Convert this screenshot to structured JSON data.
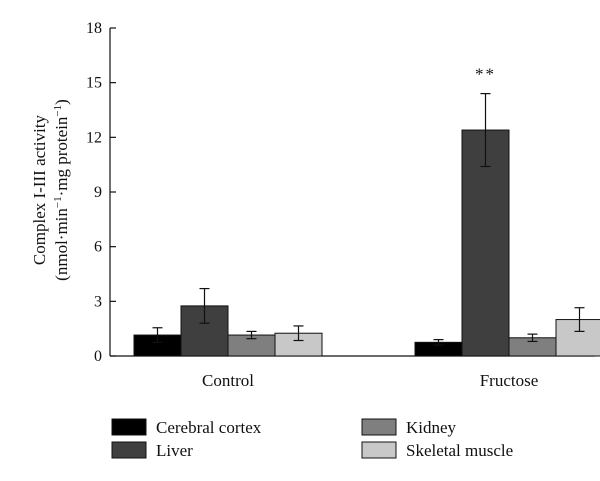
{
  "chart_data": {
    "type": "bar",
    "categories": [
      "Control",
      "Fructose"
    ],
    "series": [
      {
        "name": "Cerebral cortex",
        "values": [
          1.15,
          0.75
        ],
        "errors": [
          0.4,
          0.15
        ],
        "color": "#000000"
      },
      {
        "name": "Liver",
        "values": [
          2.75,
          12.4
        ],
        "errors": [
          0.95,
          2.0
        ],
        "color": "#3f3f3f"
      },
      {
        "name": "Kidney",
        "values": [
          1.15,
          1.0
        ],
        "errors": [
          0.2,
          0.2
        ],
        "color": "#7f7f7f"
      },
      {
        "name": "Skeletal muscle",
        "values": [
          1.25,
          2.0
        ],
        "errors": [
          0.4,
          0.65
        ],
        "color": "#c8c8c8"
      }
    ],
    "ylabel_line1": "Complex I-III activity",
    "ylabel_line2_parts": [
      "(nmol·min",
      "−1",
      "·mg protein",
      "−1",
      ")"
    ],
    "ylim": [
      0,
      18
    ],
    "yticks": [
      "0",
      "3",
      "6",
      "9",
      "12",
      "15",
      "18"
    ],
    "annotations": [
      {
        "category": "Fructose",
        "series": "Liver",
        "text": "**"
      }
    ],
    "grid": false,
    "legend_position": "bottom"
  }
}
